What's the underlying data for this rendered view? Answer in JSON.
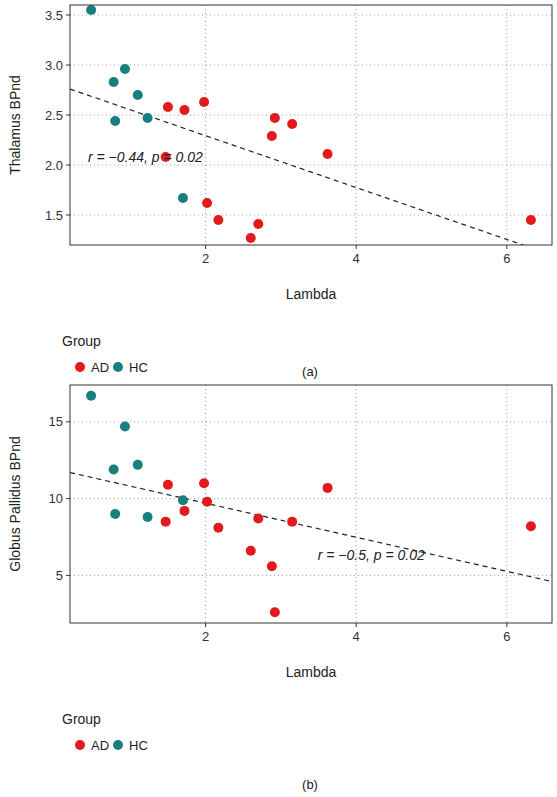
{
  "chart_data": [
    {
      "type": "scatter",
      "caption": "(a)",
      "x_label": "Lambda",
      "y_label": "Thalamus BPnd",
      "xlim": [
        0.2,
        6.6
      ],
      "ylim": [
        1.2,
        3.6
      ],
      "xticks": [
        2,
        4,
        6
      ],
      "yticks": [
        1.5,
        {
          "value": 2,
          "label": "2.0"
        },
        2.5,
        {
          "value": 3,
          "label": "3.0"
        },
        3.5
      ],
      "grid": true,
      "legend": "bottom",
      "legend_title": "Group",
      "series": [
        {
          "name": "AD",
          "color": "#e31a1c",
          "marker": "circle",
          "x": [
            1.5,
            1.72,
            1.98,
            1.47,
            2.02,
            2.17,
            2.6,
            2.7,
            2.88,
            2.92,
            3.15,
            3.62,
            6.32
          ],
          "values": [
            2.58,
            2.55,
            2.63,
            2.08,
            1.62,
            1.45,
            1.27,
            1.41,
            2.29,
            2.47,
            2.41,
            2.11,
            1.45
          ]
        },
        {
          "name": "HC",
          "color": "#17807e",
          "marker": "circle",
          "x": [
            0.48,
            0.93,
            0.78,
            1.1,
            0.8,
            1.23,
            1.7
          ],
          "values": [
            3.55,
            2.96,
            2.83,
            2.7,
            2.44,
            2.47,
            1.67
          ]
        }
      ],
      "fit_line": {
        "x": [
          0.2,
          6.6
        ],
        "y": [
          2.76,
          1.1
        ],
        "line_style": "dashed"
      },
      "annotations": [
        {
          "text": "r = −0.44, p = 0.02",
          "x": 1.2,
          "y": 2.08
        }
      ]
    },
    {
      "type": "scatter",
      "caption": "(b)",
      "x_label": "Lambda",
      "y_label": "Globus Pallidus BPnd",
      "xlim": [
        0.2,
        6.6
      ],
      "ylim": [
        1.9,
        17.4
      ],
      "xticks": [
        2,
        4,
        6
      ],
      "yticks": [
        5,
        10,
        15
      ],
      "grid": true,
      "legend": "bottom",
      "legend_title": "Group",
      "series": [
        {
          "name": "AD",
          "color": "#e31a1c",
          "marker": "circle",
          "x": [
            1.5,
            1.72,
            1.98,
            1.47,
            2.02,
            2.17,
            2.6,
            2.7,
            2.88,
            2.92,
            3.15,
            3.62,
            6.32
          ],
          "values": [
            10.9,
            9.2,
            11.0,
            8.5,
            9.8,
            8.1,
            6.6,
            8.7,
            5.6,
            2.6,
            8.5,
            10.7,
            8.2
          ]
        },
        {
          "name": "HC",
          "color": "#17807e",
          "marker": "circle",
          "x": [
            0.48,
            0.93,
            0.78,
            1.1,
            0.8,
            1.23,
            1.7
          ],
          "values": [
            16.7,
            14.7,
            11.9,
            12.2,
            9.0,
            8.8,
            9.9
          ]
        }
      ],
      "fit_line": {
        "x": [
          0.2,
          6.6
        ],
        "y": [
          11.7,
          4.6
        ],
        "line_style": "dashed"
      },
      "annotations": [
        {
          "text": "r = −0.5, p = 0.02",
          "x": 4.2,
          "y": 6.3
        }
      ]
    }
  ]
}
